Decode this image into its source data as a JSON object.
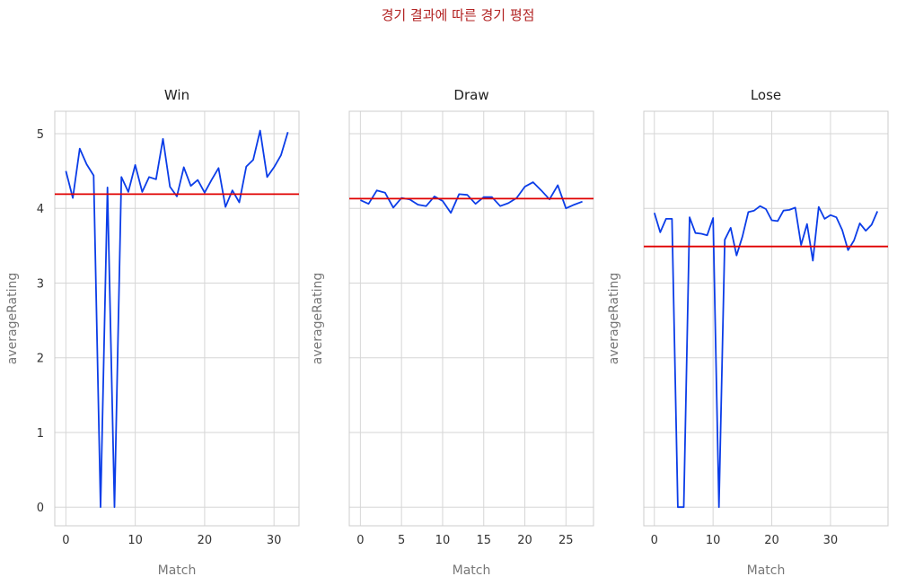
{
  "title": "경기 결과에 따른 경기 평점",
  "colors": {
    "title": "#b22222",
    "line": "#0b3de8",
    "mean_line": "#e00000",
    "grid": "#d6d6d6",
    "spine": "#cccccc"
  },
  "chart_data": [
    {
      "type": "line",
      "title": "Win",
      "xlabel": "Match",
      "ylabel": "averageRating",
      "xlim": [
        -1.6,
        33.6
      ],
      "ylim": [
        -0.25,
        5.3
      ],
      "xticks": [
        0,
        10,
        20,
        30
      ],
      "yticks": [
        0,
        1,
        2,
        3,
        4,
        5
      ],
      "grid": true,
      "mean": 4.19,
      "series": [
        {
          "x": [
            0,
            1,
            2,
            3,
            4,
            5,
            6,
            7,
            8,
            9,
            10,
            11,
            12,
            13,
            14,
            15,
            16,
            17,
            18,
            19,
            20,
            21,
            22,
            23,
            24,
            25,
            26,
            27,
            28,
            29,
            30,
            31,
            32
          ],
          "values": [
            4.5,
            4.14,
            4.8,
            4.59,
            4.44,
            0.0,
            4.28,
            0.0,
            4.42,
            4.22,
            4.58,
            4.22,
            4.42,
            4.39,
            4.93,
            4.29,
            4.16,
            4.55,
            4.3,
            4.38,
            4.21,
            4.38,
            4.54,
            4.02,
            4.24,
            4.08,
            4.56,
            4.65,
            5.04,
            4.42,
            4.55,
            4.71,
            5.02
          ]
        }
      ]
    },
    {
      "type": "line",
      "title": "Draw",
      "xlabel": "Match",
      "ylabel": "averageRating",
      "xlim": [
        -1.35,
        28.35
      ],
      "ylim": [
        -0.25,
        5.3
      ],
      "xticks": [
        0,
        5,
        10,
        15,
        20,
        25
      ],
      "yticks": [
        0,
        1,
        2,
        3,
        4,
        5
      ],
      "grid": true,
      "mean": 4.13,
      "series": [
        {
          "x": [
            0,
            1,
            2,
            3,
            4,
            5,
            6,
            7,
            8,
            9,
            10,
            11,
            12,
            13,
            14,
            15,
            16,
            17,
            18,
            19,
            20,
            21,
            22,
            23,
            24,
            25,
            26,
            27
          ],
          "values": [
            4.11,
            4.06,
            4.24,
            4.21,
            4.01,
            4.14,
            4.12,
            4.05,
            4.03,
            4.16,
            4.1,
            3.94,
            4.19,
            4.18,
            4.06,
            4.15,
            4.15,
            4.03,
            4.07,
            4.14,
            4.29,
            4.35,
            4.24,
            4.12,
            4.31,
            4.0,
            4.05,
            4.09
          ]
        }
      ]
    },
    {
      "type": "line",
      "title": "Lose",
      "xlabel": "Match",
      "ylabel": "averageRating",
      "xlim": [
        -1.8,
        39.8
      ],
      "ylim": [
        -0.25,
        5.3
      ],
      "xticks": [
        0,
        10,
        20,
        30
      ],
      "yticks": [
        0,
        1,
        2,
        3,
        4,
        5
      ],
      "grid": true,
      "mean": 3.49,
      "series": [
        {
          "x": [
            0,
            1,
            2,
            3,
            4,
            5,
            6,
            7,
            8,
            9,
            10,
            11,
            12,
            13,
            14,
            15,
            16,
            17,
            18,
            19,
            20,
            21,
            22,
            23,
            24,
            25,
            26,
            27,
            28,
            29,
            30,
            31,
            32,
            33,
            34,
            35,
            36,
            37,
            38
          ],
          "values": [
            3.94,
            3.68,
            3.86,
            3.86,
            0.0,
            0.0,
            3.88,
            3.67,
            3.66,
            3.64,
            3.87,
            0.0,
            3.58,
            3.74,
            3.37,
            3.62,
            3.95,
            3.97,
            4.03,
            3.99,
            3.84,
            3.83,
            3.97,
            3.98,
            4.01,
            3.51,
            3.79,
            3.3,
            4.02,
            3.86,
            3.91,
            3.88,
            3.71,
            3.44,
            3.57,
            3.8,
            3.7,
            3.78,
            3.96
          ]
        }
      ]
    }
  ]
}
